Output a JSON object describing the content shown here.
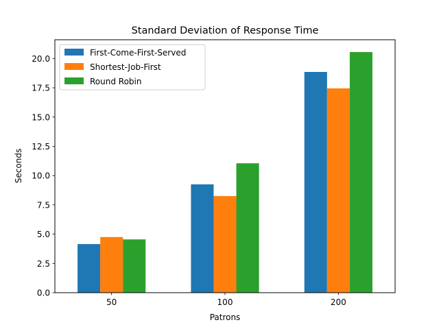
{
  "chart_data": {
    "type": "bar",
    "title": "Standard Deviation of Response Time",
    "xlabel": "Patrons",
    "ylabel": "Seconds",
    "categories": [
      "50",
      "100",
      "200"
    ],
    "ylim": [
      0,
      21.6
    ],
    "yticks": [
      0.0,
      2.5,
      5.0,
      7.5,
      10.0,
      12.5,
      15.0,
      17.5,
      20.0
    ],
    "ytick_labels": [
      "0.0",
      "2.5",
      "5.0",
      "7.5",
      "10.0",
      "12.5",
      "15.0",
      "17.5",
      "20.0"
    ],
    "grid": false,
    "legend_position": "top-left",
    "series": [
      {
        "name": "First-Come-First-Served",
        "color": "#1f77b4",
        "values": [
          4.15,
          9.25,
          18.85
        ]
      },
      {
        "name": "Shortest-Job-First",
        "color": "#ff7f0e",
        "values": [
          4.75,
          8.25,
          17.45
        ]
      },
      {
        "name": "Round Robin",
        "color": "#2ca02c",
        "values": [
          4.55,
          11.05,
          20.55
        ]
      }
    ]
  }
}
